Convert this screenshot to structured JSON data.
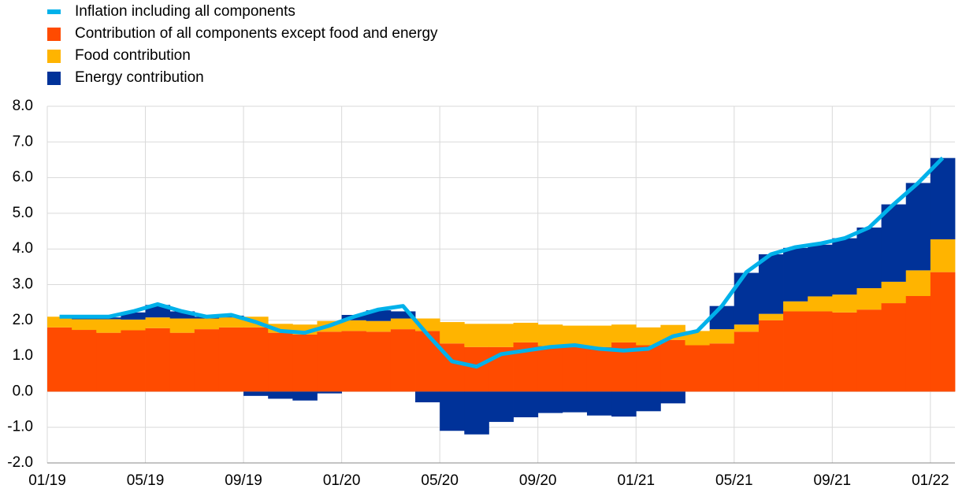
{
  "chart_data": {
    "type": "bar",
    "categories": [
      "01/19",
      null,
      null,
      null,
      "05/19",
      null,
      null,
      null,
      "09/19",
      null,
      null,
      null,
      "01/20",
      null,
      null,
      null,
      "05/20",
      null,
      null,
      null,
      "09/20",
      null,
      null,
      null,
      "01/21",
      null,
      null,
      null,
      "05/21",
      null,
      null,
      null,
      "09/21",
      null,
      null,
      null,
      "01/22"
    ],
    "series": [
      {
        "name": "Inflation including all components",
        "type": "line",
        "color": "#00b1ea",
        "values": [
          2.1,
          2.1,
          2.1,
          2.25,
          2.45,
          2.25,
          2.1,
          2.15,
          1.95,
          1.7,
          1.65,
          1.85,
          2.1,
          2.3,
          2.4,
          1.6,
          0.85,
          0.7,
          1.05,
          1.15,
          1.25,
          1.3,
          1.2,
          1.15,
          1.2,
          1.55,
          1.7,
          2.4,
          3.35,
          3.85,
          4.05,
          4.15,
          4.3,
          4.6,
          5.25,
          5.85,
          6.55
        ]
      },
      {
        "name": "Contribution of all components except food and energy",
        "type": "bar",
        "color": "#ff4b00",
        "values": [
          1.8,
          1.73,
          1.65,
          1.72,
          1.78,
          1.65,
          1.75,
          1.8,
          1.8,
          1.65,
          1.6,
          1.68,
          1.7,
          1.68,
          1.75,
          1.7,
          1.35,
          1.25,
          1.25,
          1.38,
          1.28,
          1.3,
          1.25,
          1.38,
          1.3,
          1.45,
          1.3,
          1.35,
          1.68,
          2.0,
          2.25,
          2.25,
          2.22,
          2.3,
          2.48,
          2.68,
          3.35
        ]
      },
      {
        "name": "Food contribution",
        "type": "bar",
        "color": "#ffb400",
        "values": [
          0.3,
          0.3,
          0.38,
          0.3,
          0.3,
          0.4,
          0.3,
          0.28,
          0.3,
          0.25,
          0.28,
          0.3,
          0.3,
          0.3,
          0.3,
          0.35,
          0.6,
          0.65,
          0.65,
          0.55,
          0.6,
          0.55,
          0.6,
          0.5,
          0.5,
          0.42,
          0.4,
          0.4,
          0.2,
          0.18,
          0.28,
          0.42,
          0.5,
          0.6,
          0.6,
          0.72,
          0.92
        ]
      },
      {
        "name": "Energy contribution",
        "type": "bar",
        "color": "#003299",
        "values": [
          0.0,
          0.05,
          0.05,
          0.2,
          0.35,
          0.2,
          0.05,
          0.05,
          -0.12,
          -0.2,
          -0.25,
          -0.05,
          0.15,
          0.3,
          0.2,
          -0.3,
          -1.1,
          -1.2,
          -0.85,
          -0.72,
          -0.6,
          -0.58,
          -0.67,
          -0.7,
          -0.55,
          -0.33,
          0.0,
          0.65,
          1.45,
          1.67,
          1.5,
          1.45,
          1.58,
          1.7,
          2.17,
          2.45,
          2.28
        ]
      }
    ],
    "ylim": [
      -2,
      8
    ],
    "yticks": [
      {
        "value": -2,
        "label": "-2.0"
      },
      {
        "value": -1,
        "label": "-1.0"
      },
      {
        "value": 0,
        "label": "0.0"
      },
      {
        "value": 1,
        "label": "1.0"
      },
      {
        "value": 2,
        "label": "2.0"
      },
      {
        "value": 3,
        "label": "3.0"
      },
      {
        "value": 4,
        "label": "4.0"
      },
      {
        "value": 5,
        "label": "5.0"
      },
      {
        "value": 6,
        "label": "6.0"
      },
      {
        "value": 7,
        "label": "7.0"
      },
      {
        "value": 8,
        "label": "8.0"
      }
    ],
    "grid": true,
    "legend": "top-left"
  }
}
